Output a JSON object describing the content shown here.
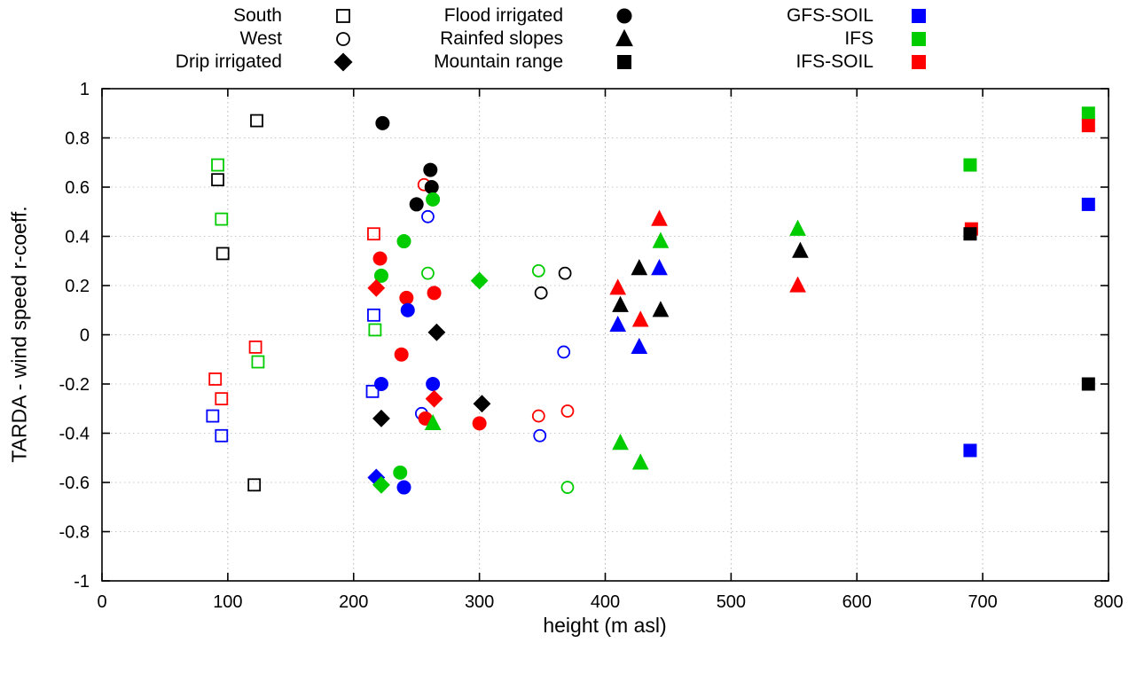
{
  "colors": {
    "black": "#000000",
    "blue": "#0000ff",
    "green": "#00cc00",
    "red": "#ff0000"
  },
  "legend": {
    "columns": [
      {
        "items": [
          {
            "label": "South",
            "shape": "square",
            "fill": "open",
            "color": "black"
          },
          {
            "label": "West",
            "shape": "circle",
            "fill": "open",
            "color": "black"
          },
          {
            "label": "Drip irrigated",
            "shape": "diamond",
            "fill": "filled",
            "color": "black"
          }
        ]
      },
      {
        "items": [
          {
            "label": "Flood irrigated",
            "shape": "circle",
            "fill": "filled",
            "color": "black"
          },
          {
            "label": "Rainfed slopes",
            "shape": "triangle",
            "fill": "filled",
            "color": "black"
          },
          {
            "label": "Mountain range",
            "shape": "square",
            "fill": "filled",
            "color": "black"
          }
        ]
      },
      {
        "items": [
          {
            "label": "GFS-SOIL",
            "shape": "square",
            "fill": "filled",
            "color": "blue"
          },
          {
            "label": "IFS",
            "shape": "square",
            "fill": "filled",
            "color": "green"
          },
          {
            "label": "IFS-SOIL",
            "shape": "square",
            "fill": "filled",
            "color": "red"
          }
        ]
      }
    ]
  },
  "chart_data": {
    "type": "scatter",
    "xlabel": "height (m asl)",
    "ylabel": "TARDA - wind speed r-coeff.",
    "xlim": [
      0,
      800
    ],
    "ylim": [
      -1,
      1
    ],
    "xticks": [
      0,
      100,
      200,
      300,
      400,
      500,
      600,
      700,
      800
    ],
    "yticks": [
      -1,
      -0.8,
      -0.6,
      -0.4,
      -0.2,
      0,
      0.2,
      0.4,
      0.6,
      0.8,
      1
    ],
    "grid": true,
    "points": [
      {
        "x": 92,
        "y": 0.69,
        "shape": "square",
        "fill": "open",
        "color": "green"
      },
      {
        "x": 92,
        "y": 0.63,
        "shape": "square",
        "fill": "open",
        "color": "black"
      },
      {
        "x": 95,
        "y": 0.47,
        "shape": "square",
        "fill": "open",
        "color": "green"
      },
      {
        "x": 96,
        "y": 0.33,
        "shape": "square",
        "fill": "open",
        "color": "black"
      },
      {
        "x": 90,
        "y": -0.18,
        "shape": "square",
        "fill": "open",
        "color": "red"
      },
      {
        "x": 95,
        "y": -0.26,
        "shape": "square",
        "fill": "open",
        "color": "red"
      },
      {
        "x": 88,
        "y": -0.33,
        "shape": "square",
        "fill": "open",
        "color": "blue"
      },
      {
        "x": 95,
        "y": -0.41,
        "shape": "square",
        "fill": "open",
        "color": "blue"
      },
      {
        "x": 123,
        "y": 0.87,
        "shape": "square",
        "fill": "open",
        "color": "black"
      },
      {
        "x": 122,
        "y": -0.05,
        "shape": "square",
        "fill": "open",
        "color": "red"
      },
      {
        "x": 124,
        "y": -0.11,
        "shape": "square",
        "fill": "open",
        "color": "green"
      },
      {
        "x": 121,
        "y": -0.61,
        "shape": "square",
        "fill": "open",
        "color": "black"
      },
      {
        "x": 216,
        "y": 0.41,
        "shape": "square",
        "fill": "open",
        "color": "red"
      },
      {
        "x": 216,
        "y": 0.08,
        "shape": "square",
        "fill": "open",
        "color": "blue"
      },
      {
        "x": 217,
        "y": 0.02,
        "shape": "square",
        "fill": "open",
        "color": "green"
      },
      {
        "x": 215,
        "y": -0.23,
        "shape": "square",
        "fill": "open",
        "color": "blue"
      },
      {
        "x": 256,
        "y": 0.61,
        "shape": "circle",
        "fill": "open",
        "color": "red"
      },
      {
        "x": 259,
        "y": 0.48,
        "shape": "circle",
        "fill": "open",
        "color": "blue"
      },
      {
        "x": 259,
        "y": 0.25,
        "shape": "circle",
        "fill": "open",
        "color": "green"
      },
      {
        "x": 254,
        "y": -0.32,
        "shape": "circle",
        "fill": "open",
        "color": "blue"
      },
      {
        "x": 347,
        "y": 0.26,
        "shape": "circle",
        "fill": "open",
        "color": "green"
      },
      {
        "x": 349,
        "y": 0.17,
        "shape": "circle",
        "fill": "open",
        "color": "black"
      },
      {
        "x": 347,
        "y": -0.33,
        "shape": "circle",
        "fill": "open",
        "color": "red"
      },
      {
        "x": 348,
        "y": -0.41,
        "shape": "circle",
        "fill": "open",
        "color": "blue"
      },
      {
        "x": 368,
        "y": 0.25,
        "shape": "circle",
        "fill": "open",
        "color": "black"
      },
      {
        "x": 367,
        "y": -0.07,
        "shape": "circle",
        "fill": "open",
        "color": "blue"
      },
      {
        "x": 370,
        "y": -0.31,
        "shape": "circle",
        "fill": "open",
        "color": "red"
      },
      {
        "x": 370,
        "y": -0.62,
        "shape": "circle",
        "fill": "open",
        "color": "green"
      },
      {
        "x": 223,
        "y": 0.86,
        "shape": "circle",
        "fill": "filled",
        "color": "black"
      },
      {
        "x": 221,
        "y": 0.31,
        "shape": "circle",
        "fill": "filled",
        "color": "red"
      },
      {
        "x": 222,
        "y": 0.24,
        "shape": "circle",
        "fill": "filled",
        "color": "green"
      },
      {
        "x": 222,
        "y": -0.2,
        "shape": "circle",
        "fill": "filled",
        "color": "blue"
      },
      {
        "x": 240,
        "y": 0.38,
        "shape": "circle",
        "fill": "filled",
        "color": "green"
      },
      {
        "x": 242,
        "y": 0.15,
        "shape": "circle",
        "fill": "filled",
        "color": "red"
      },
      {
        "x": 243,
        "y": 0.1,
        "shape": "circle",
        "fill": "filled",
        "color": "blue"
      },
      {
        "x": 238,
        "y": -0.08,
        "shape": "circle",
        "fill": "filled",
        "color": "red"
      },
      {
        "x": 237,
        "y": -0.56,
        "shape": "circle",
        "fill": "filled",
        "color": "green"
      },
      {
        "x": 240,
        "y": -0.62,
        "shape": "circle",
        "fill": "filled",
        "color": "blue"
      },
      {
        "x": 261,
        "y": 0.67,
        "shape": "circle",
        "fill": "filled",
        "color": "black"
      },
      {
        "x": 262,
        "y": 0.6,
        "shape": "circle",
        "fill": "filled",
        "color": "black"
      },
      {
        "x": 263,
        "y": 0.55,
        "shape": "circle",
        "fill": "filled",
        "color": "green"
      },
      {
        "x": 250,
        "y": 0.53,
        "shape": "circle",
        "fill": "filled",
        "color": "black"
      },
      {
        "x": 264,
        "y": 0.17,
        "shape": "circle",
        "fill": "filled",
        "color": "red"
      },
      {
        "x": 263,
        "y": -0.2,
        "shape": "circle",
        "fill": "filled",
        "color": "blue"
      },
      {
        "x": 257,
        "y": -0.34,
        "shape": "circle",
        "fill": "filled",
        "color": "red"
      },
      {
        "x": 300,
        "y": -0.36,
        "shape": "circle",
        "fill": "filled",
        "color": "red"
      },
      {
        "x": 218,
        "y": 0.19,
        "shape": "diamond",
        "fill": "filled",
        "color": "red"
      },
      {
        "x": 222,
        "y": -0.34,
        "shape": "diamond",
        "fill": "filled",
        "color": "black"
      },
      {
        "x": 218,
        "y": -0.58,
        "shape": "diamond",
        "fill": "filled",
        "color": "blue"
      },
      {
        "x": 222,
        "y": -0.61,
        "shape": "diamond",
        "fill": "filled",
        "color": "green"
      },
      {
        "x": 266,
        "y": 0.01,
        "shape": "diamond",
        "fill": "filled",
        "color": "black"
      },
      {
        "x": 264,
        "y": -0.26,
        "shape": "diamond",
        "fill": "filled",
        "color": "red"
      },
      {
        "x": 300,
        "y": 0.22,
        "shape": "diamond",
        "fill": "filled",
        "color": "green"
      },
      {
        "x": 302,
        "y": -0.28,
        "shape": "diamond",
        "fill": "filled",
        "color": "black"
      },
      {
        "x": 263,
        "y": -0.36,
        "shape": "triangle",
        "fill": "filled",
        "color": "green"
      },
      {
        "x": 410,
        "y": 0.19,
        "shape": "triangle",
        "fill": "filled",
        "color": "red"
      },
      {
        "x": 412,
        "y": 0.12,
        "shape": "triangle",
        "fill": "filled",
        "color": "black"
      },
      {
        "x": 410,
        "y": 0.04,
        "shape": "triangle",
        "fill": "filled",
        "color": "blue"
      },
      {
        "x": 412,
        "y": -0.44,
        "shape": "triangle",
        "fill": "filled",
        "color": "green"
      },
      {
        "x": 427,
        "y": 0.27,
        "shape": "triangle",
        "fill": "filled",
        "color": "black"
      },
      {
        "x": 428,
        "y": 0.06,
        "shape": "triangle",
        "fill": "filled",
        "color": "red"
      },
      {
        "x": 427,
        "y": -0.05,
        "shape": "triangle",
        "fill": "filled",
        "color": "blue"
      },
      {
        "x": 428,
        "y": -0.52,
        "shape": "triangle",
        "fill": "filled",
        "color": "green"
      },
      {
        "x": 443,
        "y": 0.47,
        "shape": "triangle",
        "fill": "filled",
        "color": "red"
      },
      {
        "x": 444,
        "y": 0.38,
        "shape": "triangle",
        "fill": "filled",
        "color": "green"
      },
      {
        "x": 443,
        "y": 0.27,
        "shape": "triangle",
        "fill": "filled",
        "color": "blue"
      },
      {
        "x": 444,
        "y": 0.1,
        "shape": "triangle",
        "fill": "filled",
        "color": "black"
      },
      {
        "x": 553,
        "y": 0.43,
        "shape": "triangle",
        "fill": "filled",
        "color": "green"
      },
      {
        "x": 555,
        "y": 0.34,
        "shape": "triangle",
        "fill": "filled",
        "color": "black"
      },
      {
        "x": 553,
        "y": 0.2,
        "shape": "triangle",
        "fill": "filled",
        "color": "red"
      },
      {
        "x": 690,
        "y": 0.69,
        "shape": "square",
        "fill": "filled",
        "color": "green"
      },
      {
        "x": 691,
        "y": 0.43,
        "shape": "square",
        "fill": "filled",
        "color": "red"
      },
      {
        "x": 690,
        "y": 0.41,
        "shape": "square",
        "fill": "filled",
        "color": "black"
      },
      {
        "x": 690,
        "y": -0.47,
        "shape": "square",
        "fill": "filled",
        "color": "blue"
      },
      {
        "x": 784,
        "y": 0.9,
        "shape": "square",
        "fill": "filled",
        "color": "green"
      },
      {
        "x": 784,
        "y": 0.85,
        "shape": "square",
        "fill": "filled",
        "color": "red"
      },
      {
        "x": 784,
        "y": 0.53,
        "shape": "square",
        "fill": "filled",
        "color": "blue"
      },
      {
        "x": 784,
        "y": -0.2,
        "shape": "square",
        "fill": "filled",
        "color": "black"
      }
    ]
  }
}
